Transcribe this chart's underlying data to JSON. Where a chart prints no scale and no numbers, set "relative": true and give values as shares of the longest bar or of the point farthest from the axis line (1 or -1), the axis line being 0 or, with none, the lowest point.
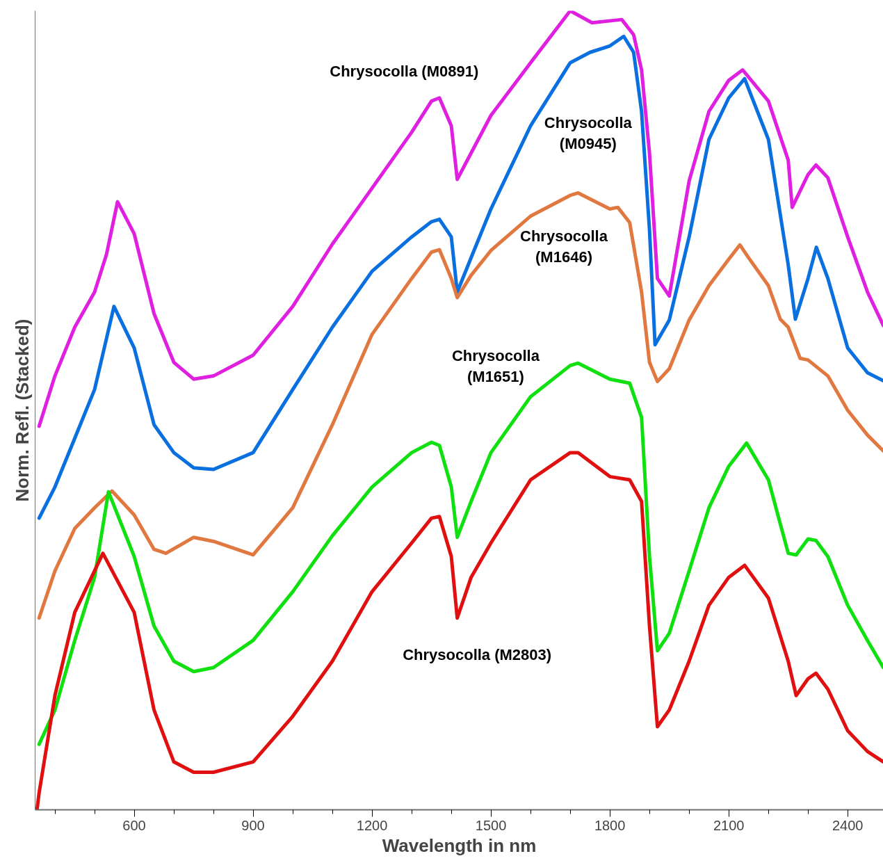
{
  "chart_data": {
    "type": "line",
    "relative": true,
    "xlabel": "Wavelength in nm",
    "ylabel": "Norm. Refl. (Stacked)",
    "xlim": [
      350,
      2490
    ],
    "xticks": [
      {
        "value": 400,
        "label": null
      },
      {
        "value": 500,
        "label": null
      },
      600,
      {
        "value": 700,
        "label": null
      },
      {
        "value": 800,
        "label": null
      },
      900,
      {
        "value": 1000,
        "label": null
      },
      {
        "value": 1100,
        "label": null
      },
      1200,
      {
        "value": 1300,
        "label": null
      },
      {
        "value": 1400,
        "label": null
      },
      1500,
      {
        "value": 1600,
        "label": null
      },
      {
        "value": 1700,
        "label": null
      },
      1800,
      {
        "value": 1900,
        "label": null
      },
      {
        "value": 2000,
        "label": null
      },
      2100,
      {
        "value": 2200,
        "label": null
      },
      {
        "value": 2300,
        "label": null
      },
      2400
    ],
    "grid": false,
    "legend": false,
    "marker": "none",
    "line_style": "solid",
    "series": [
      {
        "name": "Chrysocolla (M0891)",
        "color": "#e020e0",
        "x": [
          360,
          400,
          450,
          500,
          530,
          558,
          600,
          650,
          700,
          750,
          800,
          900,
          1000,
          1100,
          1200,
          1300,
          1350,
          1370,
          1400,
          1415,
          1450,
          1500,
          1600,
          1700,
          1755,
          1830,
          1860,
          1880,
          1900,
          1920,
          1950,
          2000,
          2050,
          2100,
          2135,
          2200,
          2250,
          2260,
          2300,
          2320,
          2350,
          2400,
          2450,
          2490
        ],
        "values": [
          0.48,
          0.543,
          0.604,
          0.648,
          0.695,
          0.761,
          0.721,
          0.621,
          0.56,
          0.539,
          0.543,
          0.569,
          0.63,
          0.708,
          0.778,
          0.848,
          0.887,
          0.891,
          0.856,
          0.789,
          0.822,
          0.869,
          0.935,
          1.0,
          0.985,
          0.989,
          0.97,
          0.926,
          0.822,
          0.665,
          0.643,
          0.787,
          0.874,
          0.913,
          0.926,
          0.887,
          0.813,
          0.754,
          0.795,
          0.807,
          0.791,
          0.717,
          0.648,
          0.606
        ]
      },
      {
        "name": "Chrysocolla\n(M0945)",
        "color": "#0a70e0",
        "x": [
          360,
          400,
          450,
          500,
          549,
          600,
          650,
          700,
          750,
          800,
          900,
          1000,
          1100,
          1200,
          1300,
          1350,
          1370,
          1400,
          1415,
          1450,
          1500,
          1600,
          1700,
          1750,
          1800,
          1835,
          1860,
          1880,
          1900,
          1914,
          1950,
          2000,
          2050,
          2100,
          2140,
          2200,
          2250,
          2268,
          2300,
          2321,
          2350,
          2400,
          2450,
          2490
        ],
        "values": [
          0.365,
          0.404,
          0.465,
          0.526,
          0.63,
          0.578,
          0.482,
          0.447,
          0.428,
          0.426,
          0.447,
          0.526,
          0.604,
          0.674,
          0.717,
          0.736,
          0.739,
          0.717,
          0.648,
          0.691,
          0.752,
          0.856,
          0.935,
          0.948,
          0.956,
          0.968,
          0.948,
          0.874,
          0.726,
          0.582,
          0.613,
          0.717,
          0.839,
          0.891,
          0.915,
          0.839,
          0.682,
          0.614,
          0.665,
          0.704,
          0.665,
          0.578,
          0.547,
          0.537
        ]
      },
      {
        "name": "Chrysocolla\n(M1646)",
        "color": "#e07840",
        "x": [
          360,
          400,
          450,
          500,
          544,
          600,
          650,
          680,
          750,
          800,
          900,
          1000,
          1100,
          1200,
          1300,
          1350,
          1370,
          1400,
          1415,
          1450,
          1500,
          1600,
          1700,
          1720,
          1800,
          1820,
          1850,
          1880,
          1900,
          1920,
          1950,
          2000,
          2050,
          2100,
          2128,
          2150,
          2200,
          2230,
          2250,
          2280,
          2300,
          2350,
          2400,
          2450,
          2490
        ],
        "values": [
          0.24,
          0.299,
          0.352,
          0.378,
          0.399,
          0.369,
          0.326,
          0.321,
          0.341,
          0.336,
          0.319,
          0.378,
          0.482,
          0.595,
          0.665,
          0.698,
          0.701,
          0.665,
          0.641,
          0.669,
          0.7,
          0.743,
          0.769,
          0.772,
          0.752,
          0.754,
          0.735,
          0.648,
          0.56,
          0.536,
          0.552,
          0.613,
          0.656,
          0.689,
          0.707,
          0.691,
          0.656,
          0.614,
          0.604,
          0.565,
          0.563,
          0.543,
          0.5,
          0.469,
          0.449
        ]
      },
      {
        "name": "Chrysocolla\n(M1651)",
        "color": "#10e010",
        "x": [
          360,
          400,
          450,
          500,
          535,
          600,
          650,
          700,
          750,
          800,
          900,
          1000,
          1100,
          1200,
          1300,
          1350,
          1370,
          1400,
          1415,
          1450,
          1500,
          1600,
          1700,
          1720,
          1800,
          1850,
          1880,
          1900,
          1920,
          1950,
          2000,
          2050,
          2100,
          2145,
          2200,
          2250,
          2270,
          2300,
          2320,
          2350,
          2400,
          2450,
          2490
        ],
        "values": [
          0.082,
          0.125,
          0.212,
          0.291,
          0.398,
          0.317,
          0.23,
          0.186,
          0.173,
          0.178,
          0.212,
          0.273,
          0.343,
          0.404,
          0.447,
          0.46,
          0.456,
          0.404,
          0.341,
          0.386,
          0.447,
          0.517,
          0.556,
          0.559,
          0.539,
          0.534,
          0.491,
          0.317,
          0.199,
          0.221,
          0.299,
          0.378,
          0.43,
          0.459,
          0.413,
          0.321,
          0.319,
          0.339,
          0.337,
          0.317,
          0.256,
          0.212,
          0.178
        ]
      },
      {
        "name": "Chrysocolla (M2803)",
        "color": "#e01010",
        "x": [
          355,
          360,
          400,
          450,
          500,
          521,
          600,
          650,
          700,
          750,
          800,
          900,
          1000,
          1100,
          1200,
          1300,
          1350,
          1370,
          1400,
          1415,
          1450,
          1500,
          1600,
          1700,
          1720,
          1800,
          1850,
          1880,
          1900,
          1920,
          1950,
          2000,
          2050,
          2100,
          2140,
          2200,
          2250,
          2270,
          2300,
          2320,
          2350,
          2400,
          2450,
          2490
        ],
        "values": [
          0.001,
          0.021,
          0.143,
          0.247,
          0.299,
          0.321,
          0.247,
          0.125,
          0.06,
          0.047,
          0.047,
          0.06,
          0.117,
          0.186,
          0.273,
          0.334,
          0.365,
          0.367,
          0.317,
          0.24,
          0.291,
          0.334,
          0.413,
          0.447,
          0.447,
          0.417,
          0.413,
          0.386,
          0.23,
          0.104,
          0.125,
          0.186,
          0.256,
          0.291,
          0.306,
          0.265,
          0.186,
          0.143,
          0.164,
          0.171,
          0.151,
          0.099,
          0.073,
          0.06
        ]
      }
    ]
  }
}
